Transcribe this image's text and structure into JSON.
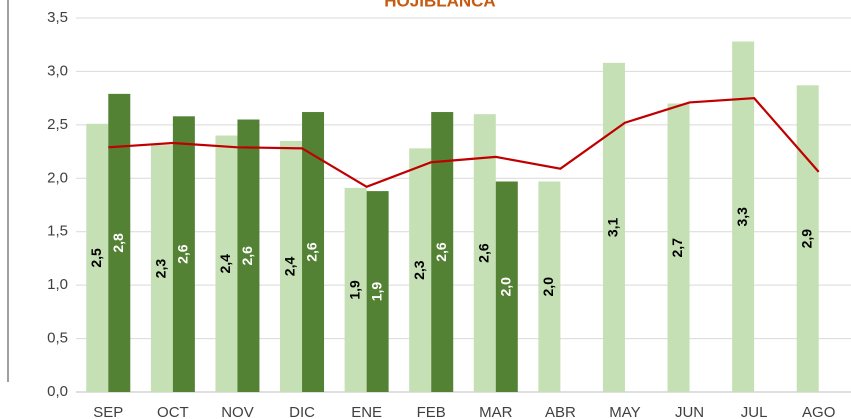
{
  "chart_data": {
    "type": "bar_line",
    "title": "HOJIBLANCA",
    "categories": [
      "SEP",
      "OCT",
      "NOV",
      "DIC",
      "ENE",
      "FEB",
      "MAR",
      "ABR",
      "MAY",
      "JUN",
      "JUL",
      "AGO"
    ],
    "series": [
      {
        "type": "bar",
        "color": "#c5e0b4",
        "label_color": "#000000",
        "values": [
          2.51,
          2.31,
          2.4,
          2.35,
          1.91,
          2.28,
          2.6,
          1.97,
          3.08,
          2.7,
          3.28,
          2.87
        ],
        "value_labels": [
          "2,5",
          "2,3",
          "2,4",
          "2,4",
          "1,9",
          "2,3",
          "2,6",
          "2,0",
          "3,1",
          "2,7",
          "3,3",
          "2,9"
        ]
      },
      {
        "type": "bar",
        "color": "#548235",
        "label_color": "#ffffff",
        "values": [
          2.79,
          2.58,
          2.55,
          2.62,
          1.88,
          2.62,
          1.97,
          null,
          null,
          null,
          null,
          null
        ],
        "value_labels": [
          "2,8",
          "2,6",
          "2,6",
          "2,6",
          "1,9",
          "2,6",
          "2,0",
          null,
          null,
          null,
          null,
          null
        ]
      },
      {
        "type": "line",
        "color": "#c00000",
        "values": [
          2.29,
          2.33,
          2.29,
          2.28,
          1.92,
          2.15,
          2.2,
          2.09,
          2.52,
          2.71,
          2.75,
          2.06
        ]
      }
    ],
    "ylim": [
      0,
      3.5
    ],
    "yticks": [
      {
        "value": 0,
        "label": "0,0"
      },
      {
        "value": 0.5,
        "label": "0,5"
      },
      {
        "value": 1,
        "label": "1,0"
      },
      {
        "value": 1.5,
        "label": "1,5"
      },
      {
        "value": 2,
        "label": "2,0"
      },
      {
        "value": 2.5,
        "label": "2,5"
      },
      {
        "value": 3,
        "label": "3,0"
      },
      {
        "value": 3.5,
        "label": "3,5"
      }
    ],
    "grid": true
  }
}
